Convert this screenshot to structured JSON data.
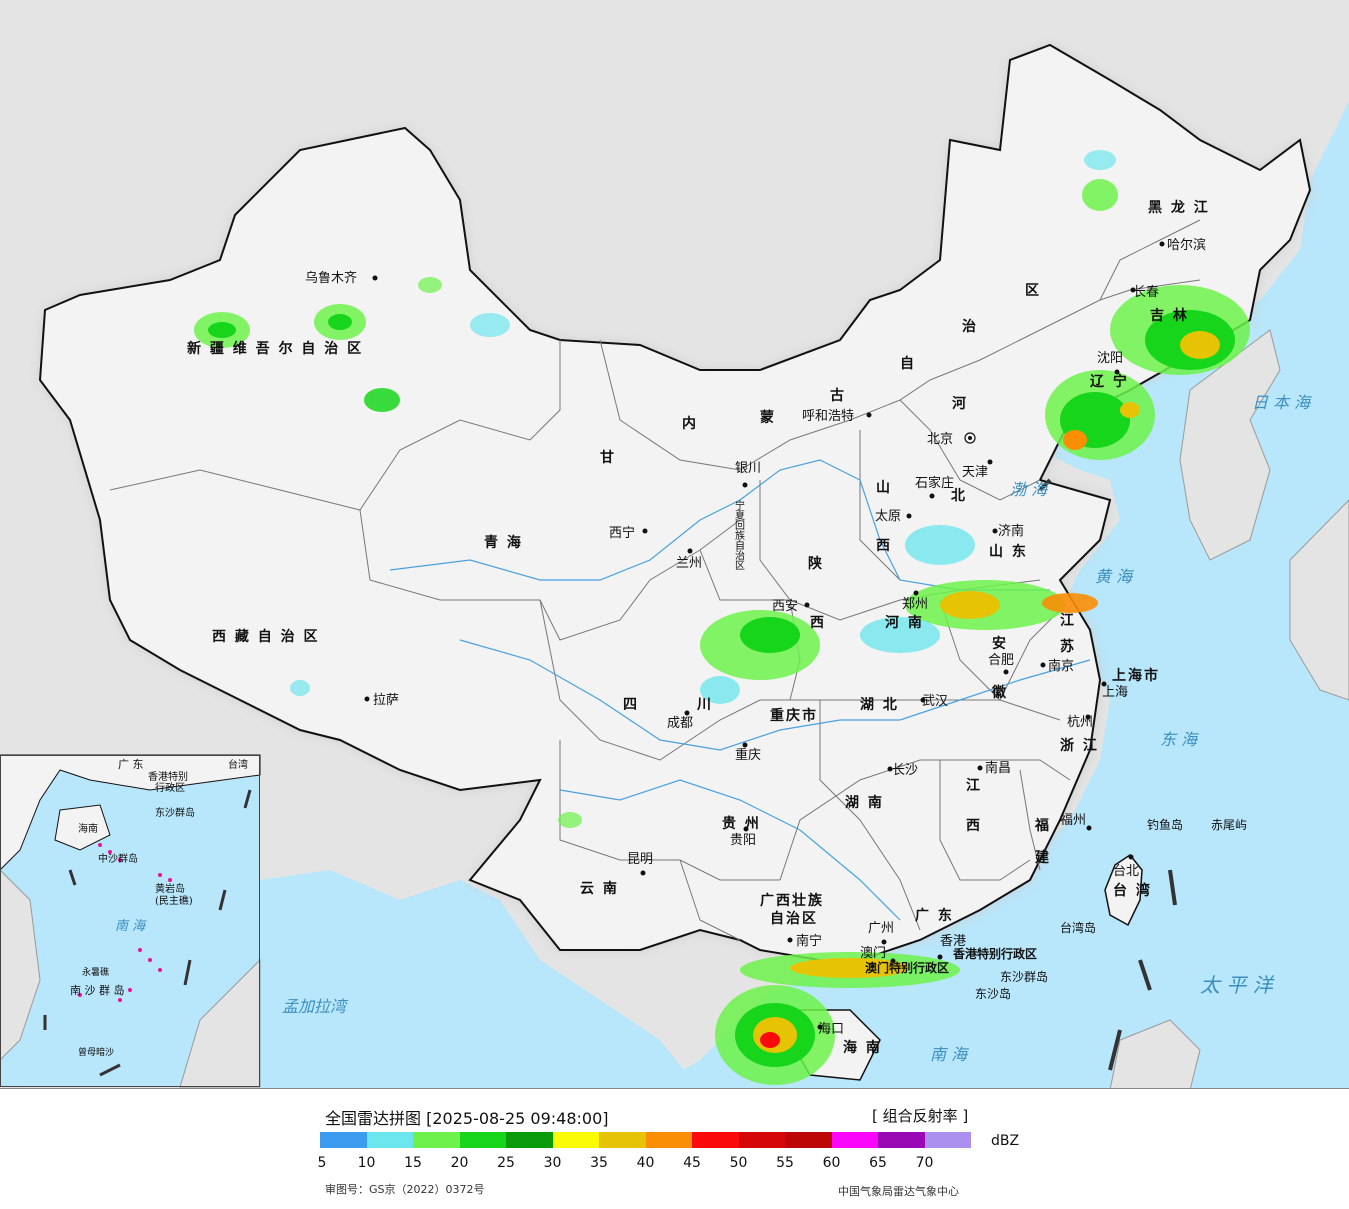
{
  "legend": {
    "title": "全国雷达拼图 [2025-08-25 09:48:00]",
    "product": "[ 组合反射率 ]",
    "unit": "dBZ",
    "colors": [
      "#3d9cf0",
      "#6ee6ee",
      "#6cf24a",
      "#16d51b",
      "#0a9a0a",
      "#fbfb06",
      "#e6c405",
      "#fa8e05",
      "#fa0a0a",
      "#d40808",
      "#bd0606",
      "#fa06fa",
      "#9a0ab4",
      "#ac90f0"
    ],
    "ticks": [
      "5",
      "10",
      "15",
      "20",
      "25",
      "30",
      "35",
      "40",
      "45",
      "50",
      "55",
      "60",
      "65",
      "70"
    ]
  },
  "footer": {
    "review_number": "审图号：GS京（2022）0372号",
    "credit": "中国气象局雷达气象中心"
  },
  "cities": [
    {
      "name": "乌鲁木齐",
      "id": "urumqi"
    },
    {
      "name": "哈尔滨",
      "id": "harbin"
    },
    {
      "name": "长春",
      "id": "changchun"
    },
    {
      "name": "沈阳",
      "id": "shenyang"
    },
    {
      "name": "呼和浩特",
      "id": "hohhot"
    },
    {
      "name": "北京",
      "id": "beijing"
    },
    {
      "name": "天津",
      "id": "tianjin"
    },
    {
      "name": "石家庄",
      "id": "shijiazhuang"
    },
    {
      "name": "太原",
      "id": "taiyuan"
    },
    {
      "name": "济南",
      "id": "jinan"
    },
    {
      "name": "银川",
      "id": "yinchuan"
    },
    {
      "name": "西宁",
      "id": "xining"
    },
    {
      "name": "兰州",
      "id": "lanzhou"
    },
    {
      "name": "西安",
      "id": "xian"
    },
    {
      "name": "郑州",
      "id": "zhengzhou"
    },
    {
      "name": "合肥",
      "id": "hefei"
    },
    {
      "name": "南京",
      "id": "nanjing"
    },
    {
      "name": "上海",
      "id": "shanghai"
    },
    {
      "name": "杭州",
      "id": "hangzhou"
    },
    {
      "name": "武汉",
      "id": "wuhan"
    },
    {
      "name": "成都",
      "id": "chengdu"
    },
    {
      "name": "重庆",
      "id": "chongqing"
    },
    {
      "name": "长沙",
      "id": "changsha"
    },
    {
      "name": "南昌",
      "id": "nanchang"
    },
    {
      "name": "福州",
      "id": "fuzhou"
    },
    {
      "name": "贵阳",
      "id": "guiyang"
    },
    {
      "name": "昆明",
      "id": "kunming"
    },
    {
      "name": "拉萨",
      "id": "lhasa"
    },
    {
      "name": "南宁",
      "id": "nanning"
    },
    {
      "name": "广州",
      "id": "guangzhou"
    },
    {
      "name": "澳门",
      "id": "macau"
    },
    {
      "name": "香港",
      "id": "hongkong"
    },
    {
      "name": "台北",
      "id": "taipei"
    },
    {
      "name": "海口",
      "id": "haikou"
    }
  ],
  "regions": {
    "xinjiang": "新 疆 维 吾 尔 自 治 区",
    "xizang": "西 藏 自 治 区",
    "qinghai": "青    海",
    "gansu": "甘",
    "neimenggu_1": "内",
    "neimenggu_2": "蒙",
    "neimenggu_3": "古",
    "neimenggu_4": "自",
    "neimenggu_5": "治",
    "neimenggu_6": "区",
    "heilongjiang": "黑 龙 江",
    "jilin": "吉 林",
    "liaoning": "辽 宁",
    "hebei": "北",
    "hebei_he": "河",
    "shanxi": "山",
    "shanxi_xi": "西",
    "shandong": "山 东",
    "henan": "河 南",
    "shaanxi": "陕",
    "shaanxi_xi": "西",
    "ningxia": "宁夏回族自治区",
    "sichuan": "四",
    "sichuan_chuan": "川",
    "chongqing_shi": "重庆市",
    "hubei": "湖 北",
    "hunan": "湖 南",
    "jiangxi": "江",
    "jiangxi_xi": "西",
    "anhui": "安",
    "anhui_hui": "徽",
    "jiangsu": "江",
    "jiangsu_su": "苏",
    "shanghai_shi": "上海市",
    "zhejiang": "浙 江",
    "fujian": "福",
    "fujian_jian": "建",
    "guizhou": "贵 州",
    "yunnan": "云 南",
    "guangxi_1": "广西壮族",
    "guangxi_2": "自治区",
    "guangdong": "广 东",
    "hainan": "海 南",
    "taiwan": "台 湾",
    "hk_sar": "香港特别行政区",
    "macau_sar": "澳门特别行政区"
  },
  "seas": {
    "bohai": "渤 海",
    "huanghai": "黄 海",
    "donghai": "东 海",
    "nanhai": "南 海",
    "taipingyang": "太 平 洋",
    "riben": "日 本 海",
    "mengjiala": "孟加拉湾"
  },
  "islands": {
    "diaoyu": "钓鱼岛",
    "chiwei": "赤尾屿",
    "taiwan_dao": "台湾岛",
    "dongsha_qundao": "东沙群岛",
    "dongsha_dao": "东沙岛"
  },
  "inset": {
    "guangdong": "广 东",
    "taiwan": "台湾",
    "hk": "香港特别",
    "hk2": "行政区",
    "dongsha": "东沙群岛",
    "hainan": "海南",
    "zhongsha": "中沙群岛",
    "huangyan": "黄岩岛",
    "minzhu": "(民主礁)",
    "nanhai": "南 海",
    "nansha": "南 沙 群 岛",
    "yongshu": "永暑礁",
    "zengmu": "曾母暗沙"
  }
}
